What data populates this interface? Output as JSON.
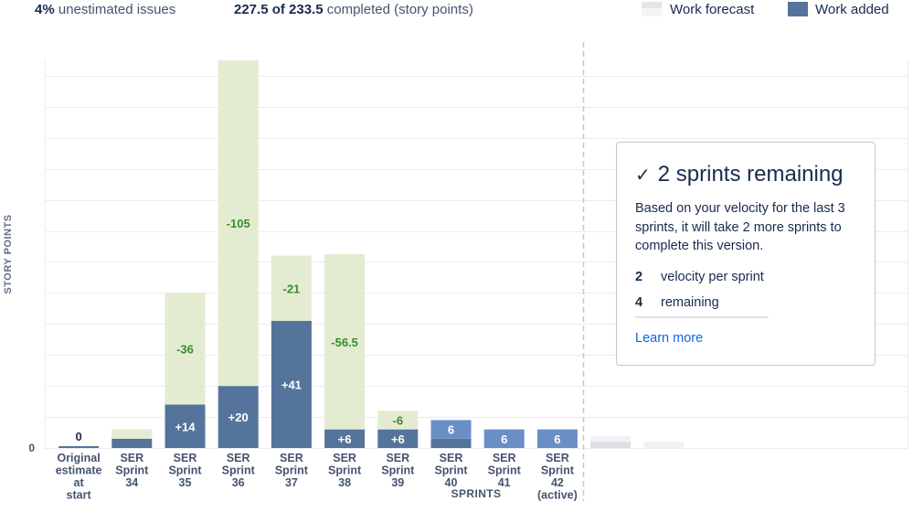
{
  "stats": {
    "unestimated_pct": "4%",
    "unestimated_label": "unestimated issues",
    "completed_value": "227.5 of 233.5",
    "completed_label": "completed (story points)"
  },
  "legend": {
    "forecast_label": "Work forecast",
    "added_label": "Work added"
  },
  "colors": {
    "work_added": "#55749b",
    "work_removed": "#e3ecd1",
    "remaining": "#6a8fc5",
    "forecast": "#e4e5e7",
    "removed_text": "#3c8b2d"
  },
  "panel": {
    "title": "2 sprints remaining",
    "check_icon": "check-icon",
    "description": "Based on your velocity for the last 3 sprints, it will take 2 more sprints to complete this version.",
    "velocity_value": "2",
    "velocity_label": "velocity per sprint",
    "remaining_value": "4",
    "remaining_label": "remaining",
    "learn_more": "Learn more"
  },
  "chart_data": {
    "type": "bar",
    "ylabel": "STORY POINTS",
    "xlabel": "SPRINTS",
    "y_tick_labels": [
      "0"
    ],
    "ylim": [
      0,
      250
    ],
    "categories": [
      [
        "Original",
        "estimate",
        "at",
        "start"
      ],
      [
        "SER",
        "Sprint",
        "34"
      ],
      [
        "SER",
        "Sprint",
        "35"
      ],
      [
        "SER",
        "Sprint",
        "36"
      ],
      [
        "SER",
        "Sprint",
        "37"
      ],
      [
        "SER",
        "Sprint",
        "38"
      ],
      [
        "SER",
        "Sprint",
        "39"
      ],
      [
        "SER",
        "Sprint",
        "40"
      ],
      [
        "SER",
        "Sprint",
        "41"
      ],
      [
        "SER",
        "Sprint",
        "42",
        "(active)"
      ]
    ],
    "bars": [
      {
        "base": 0,
        "added": 0,
        "added_label": "0",
        "removed": 0,
        "removed_label": "",
        "remaining": 0,
        "remaining_label": ""
      },
      {
        "base": 0,
        "added": 6,
        "added_label": "",
        "removed": 6,
        "removed_label": "",
        "remaining": 0,
        "remaining_label": ""
      },
      {
        "base": 0,
        "added": 28,
        "added_label": "+14",
        "removed": 72,
        "removed_label": "-36",
        "remaining": 0,
        "remaining_label": ""
      },
      {
        "base": 0,
        "added": 40,
        "added_label": "+20",
        "removed": 210,
        "removed_label": "-105",
        "remaining": 0,
        "remaining_label": ""
      },
      {
        "base": 0,
        "added": 82,
        "added_label": "+41",
        "removed": 42,
        "removed_label": "-21",
        "remaining": 0,
        "remaining_label": ""
      },
      {
        "base": 0,
        "added": 12,
        "added_label": "+6",
        "removed": 113,
        "removed_label": "-56.5",
        "remaining": 0,
        "remaining_label": ""
      },
      {
        "base": 0,
        "added": 12,
        "added_label": "+6",
        "removed": 12,
        "removed_label": "-6",
        "remaining": 0,
        "remaining_label": ""
      },
      {
        "base": 0,
        "added": 6,
        "added_label": "",
        "removed": 0,
        "removed_label": "",
        "remaining": 12,
        "remaining_label": "6"
      },
      {
        "base": 0,
        "added": 0,
        "added_label": "",
        "removed": 0,
        "removed_label": "",
        "remaining": 12,
        "remaining_label": "6"
      },
      {
        "base": 0,
        "added": 0,
        "added_label": "",
        "removed": 0,
        "removed_label": "",
        "remaining": 12,
        "remaining_label": "6"
      }
    ],
    "forecast": [
      {
        "upper": 8,
        "lower": 4
      },
      {
        "upper": 4,
        "lower": 0
      }
    ],
    "grid": true,
    "legend_position": "top-right"
  }
}
